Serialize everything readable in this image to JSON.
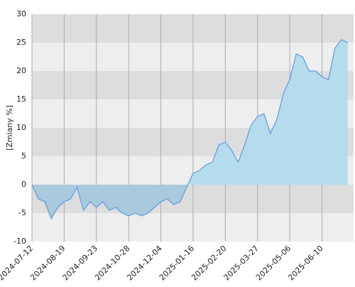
{
  "chart_data": {
    "type": "area",
    "y_label": "[Zmiany %]",
    "categories": [
      "2024-07-12",
      null,
      null,
      null,
      null,
      "2024-08-19",
      null,
      null,
      null,
      null,
      "2024-09-23",
      null,
      null,
      null,
      null,
      "2024-10-28",
      null,
      null,
      null,
      null,
      "2024-12-04",
      null,
      null,
      null,
      null,
      "2025-01-16",
      null,
      null,
      null,
      null,
      "2025-02-20",
      null,
      null,
      null,
      null,
      "2025-03-27",
      null,
      null,
      null,
      null,
      "2025-05-06",
      null,
      null,
      null,
      null,
      "2025-06-10",
      null,
      null,
      null,
      null
    ],
    "values": [
      0,
      -2.5,
      -3,
      -6,
      -4,
      -3,
      -2.5,
      -0.5,
      -4.5,
      -3,
      -4,
      -3,
      -4.5,
      -4,
      -5,
      -5.5,
      -5,
      -5.5,
      -5,
      -4,
      -3,
      -2.5,
      -3.5,
      -3,
      -0.5,
      2,
      2.5,
      3.5,
      4,
      7,
      7.5,
      6,
      4,
      7,
      10.5,
      12,
      12.5,
      9,
      11.5,
      16,
      18.5,
      23,
      22.5,
      20,
      20,
      19,
      18.5,
      24,
      25.5,
      25
    ],
    "ylim": [
      -10,
      30
    ],
    "yticks": [
      -10,
      -5,
      0,
      5,
      10,
      15,
      20,
      25,
      30
    ],
    "grid": true,
    "line_color": "#5b9be0",
    "fill_above": "#b5dcec",
    "fill_below": "#a9c9dc",
    "band_colors": [
      "#eeeeee",
      "#dddddd"
    ]
  }
}
